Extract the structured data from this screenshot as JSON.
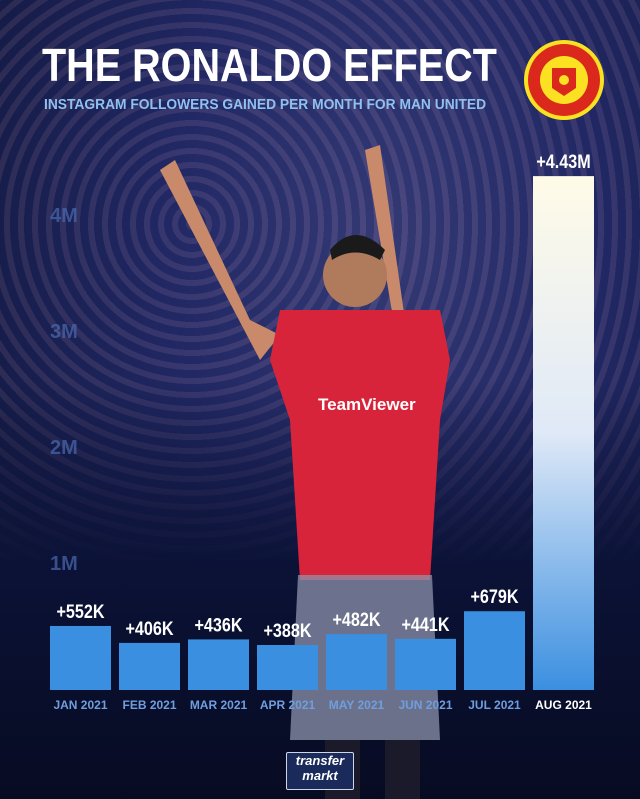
{
  "header": {
    "title": "THE RONALDO EFFECT",
    "subtitle": "INSTAGRAM FOLLOWERS GAINED PER MONTH FOR MAN UNITED"
  },
  "crest": {
    "text": "MANCHESTER UNITED",
    "colors": {
      "red": "#da291c",
      "yellow": "#fbe122"
    }
  },
  "sponsor_text": "TeamViewer",
  "source_logo": {
    "line1": "transfer",
    "line2": "markt"
  },
  "chart_data": {
    "type": "bar",
    "title": "THE RONALDO EFFECT",
    "subtitle": "INSTAGRAM FOLLOWERS GAINED PER MONTH FOR MAN UNITED",
    "categories": [
      "JAN 2021",
      "FEB 2021",
      "MAR 2021",
      "APR 2021",
      "MAY 2021",
      "JUN 2021",
      "JUL 2021",
      "AUG 2021"
    ],
    "values": [
      552000,
      406000,
      436000,
      388000,
      482000,
      441000,
      679000,
      4430000
    ],
    "data_labels": [
      "+552K",
      "+406K",
      "+436K",
      "+388K",
      "+482K",
      "+441K",
      "+679K",
      "+4.43M"
    ],
    "yticks": [
      {
        "value": 1000000,
        "label": "1M"
      },
      {
        "value": 2000000,
        "label": "2M"
      },
      {
        "value": 3000000,
        "label": "3M"
      },
      {
        "value": 4000000,
        "label": "4M"
      }
    ],
    "ylim": [
      0,
      4430000
    ],
    "grid": false,
    "colors": {
      "bar": "#3b8fe0",
      "highlight_bar": "#fff6d8",
      "label": "#ffffff",
      "category": "#6f9ee0",
      "highlight_category": "#ffffff"
    }
  }
}
